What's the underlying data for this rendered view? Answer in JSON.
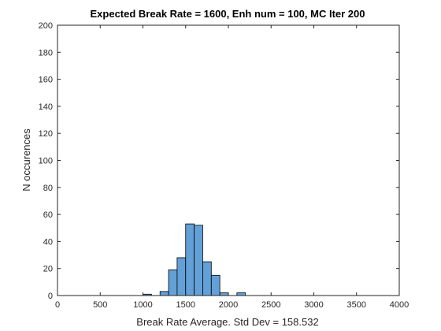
{
  "chart_data": {
    "type": "bar",
    "title": "Expected Break Rate = 1600, Enh num = 100, MC Iter 200",
    "xlabel": "Break Rate Average. Std Dev = 158.532",
    "ylabel": "N occurences",
    "xlim": [
      0,
      4000
    ],
    "ylim": [
      0,
      200
    ],
    "xticks": [
      "0",
      "500",
      "1000",
      "1500",
      "2000",
      "2500",
      "3000",
      "3500",
      "4000"
    ],
    "yticks": [
      "0",
      "20",
      "40",
      "60",
      "80",
      "100",
      "120",
      "140",
      "160",
      "180",
      "200"
    ],
    "bin_width": 100,
    "bins": [
      {
        "x0": 1000,
        "x1": 1100,
        "count": 1
      },
      {
        "x0": 1100,
        "x1": 1200,
        "count": 0
      },
      {
        "x0": 1200,
        "x1": 1300,
        "count": 3
      },
      {
        "x0": 1300,
        "x1": 1400,
        "count": 19
      },
      {
        "x0": 1400,
        "x1": 1500,
        "count": 28
      },
      {
        "x0": 1500,
        "x1": 1600,
        "count": 53
      },
      {
        "x0": 1600,
        "x1": 1700,
        "count": 52
      },
      {
        "x0": 1700,
        "x1": 1800,
        "count": 25
      },
      {
        "x0": 1800,
        "x1": 1900,
        "count": 15
      },
      {
        "x0": 1900,
        "x1": 2000,
        "count": 2
      },
      {
        "x0": 2000,
        "x1": 2100,
        "count": 0
      },
      {
        "x0": 2100,
        "x1": 2200,
        "count": 2
      }
    ],
    "bar_color": "#5b9bd5",
    "grid": false
  }
}
